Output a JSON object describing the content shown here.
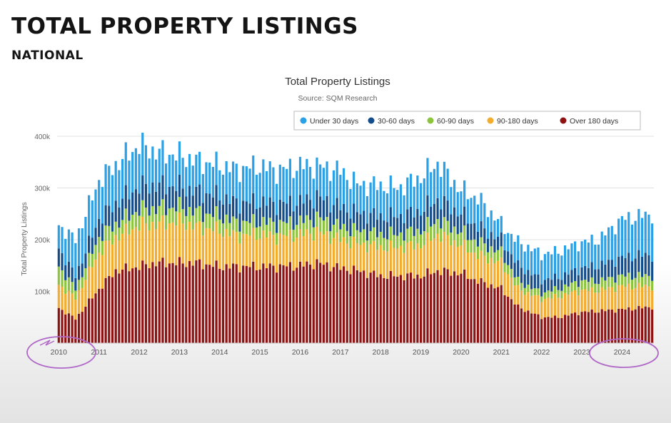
{
  "slide": {
    "title": "TOTAL PROPERTY LISTINGS",
    "subtitle": "NATIONAL"
  },
  "colors": {
    "series": [
      "#2aa0e6",
      "#124c8a",
      "#8cc43c",
      "#f4ac2c",
      "#8e1212"
    ],
    "annotation": "#b068c8"
  },
  "chart_data": {
    "type": "bar",
    "stacked": true,
    "title": "Total Property Listings",
    "subtitle": "Source: SQM Research",
    "xlabel": "",
    "ylabel": "Total Property Listings",
    "ylim": [
      0,
      400000
    ],
    "y_ticks": [
      "",
      "100k",
      "200k",
      "300k",
      "400k"
    ],
    "x_ticks": [
      "2010",
      "2011",
      "2012",
      "2013",
      "2014",
      "2015",
      "2016",
      "2017",
      "2018",
      "2019",
      "2020",
      "2021",
      "2022",
      "2023",
      "2024"
    ],
    "legend_position": "top-right",
    "grid": true,
    "annotations": [
      "circle around 2010",
      "circle around 2024"
    ],
    "x": [
      "2010-01",
      "2010-06",
      "2011-01",
      "2011-06",
      "2012-01",
      "2012-06",
      "2013-01",
      "2013-06",
      "2014-01",
      "2014-06",
      "2015-01",
      "2015-06",
      "2016-01",
      "2016-06",
      "2017-01",
      "2017-06",
      "2018-01",
      "2018-06",
      "2019-01",
      "2019-06",
      "2020-01",
      "2020-06",
      "2021-01",
      "2021-06",
      "2022-01",
      "2022-06",
      "2023-01",
      "2023-06",
      "2024-01",
      "2024-06",
      "2024-10"
    ],
    "series": [
      {
        "name": "Over 180 days",
        "values": [
          68000,
          47000,
          105000,
          140000,
          148000,
          155000,
          155000,
          155000,
          148000,
          148000,
          148000,
          148000,
          150000,
          155000,
          145000,
          140000,
          130000,
          130000,
          130000,
          140000,
          135000,
          120000,
          105000,
          70000,
          50000,
          50000,
          60000,
          62000,
          65000,
          68000,
          70000
        ]
      },
      {
        "name": "90-180 days",
        "values": [
          45000,
          40000,
          70000,
          65000,
          80000,
          75000,
          80000,
          70000,
          70000,
          60000,
          62000,
          58000,
          60000,
          60000,
          55000,
          52000,
          55000,
          55000,
          60000,
          70000,
          55000,
          50000,
          50000,
          35000,
          35000,
          40000,
          42000,
          40000,
          45000,
          42000,
          40000
        ]
      },
      {
        "name": "60-90 days",
        "values": [
          35000,
          18000,
          30000,
          25000,
          30000,
          30000,
          28000,
          28000,
          28000,
          25000,
          25000,
          25000,
          25000,
          28000,
          25000,
          25000,
          25000,
          25000,
          28000,
          28000,
          25000,
          25000,
          20000,
          15000,
          12000,
          15000,
          18000,
          18000,
          20000,
          20000,
          20000
        ]
      },
      {
        "name": "30-60 days",
        "values": [
          35000,
          25000,
          35000,
          40000,
          45000,
          45000,
          40000,
          40000,
          38000,
          38000,
          38000,
          38000,
          38000,
          40000,
          38000,
          35000,
          35000,
          35000,
          38000,
          40000,
          35000,
          30000,
          25000,
          30000,
          25000,
          22000,
          25000,
          30000,
          35000,
          40000,
          40000
        ]
      },
      {
        "name": "Under 30 days",
        "values": [
          45000,
          70000,
          75000,
          75000,
          80000,
          65000,
          60000,
          60000,
          60000,
          65000,
          70000,
          65000,
          70000,
          60000,
          70000,
          55000,
          60000,
          55000,
          65000,
          70000,
          45000,
          55000,
          30000,
          45000,
          50000,
          50000,
          50000,
          50000,
          75000,
          75000,
          80000
        ]
      }
    ]
  }
}
